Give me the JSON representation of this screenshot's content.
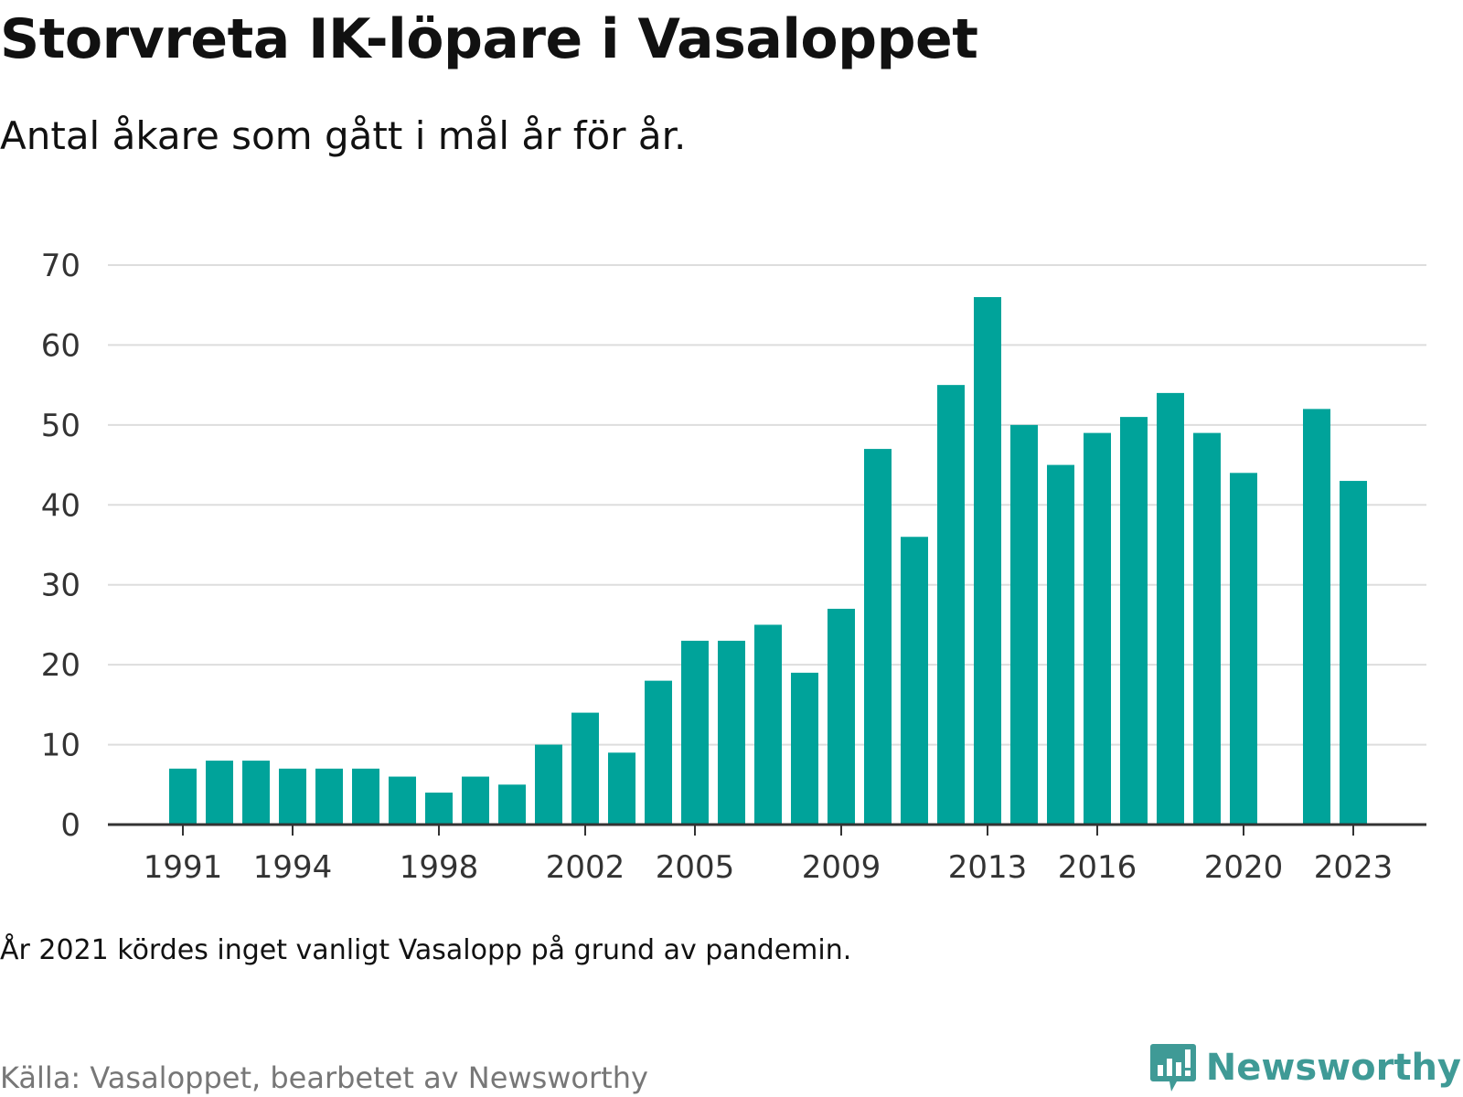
{
  "title": "Storvreta IK-löpare i Vasaloppet",
  "subtitle": "Antal åkare som gått i mål år för år.",
  "note": "År 2021 kördes inget vanligt Vasalopp på grund av pandemin.",
  "source": "Källa: Vasaloppet, bearbetet av Newsworthy",
  "brand": {
    "name": "Newsworthy",
    "icon": "newsworthy-logo-icon",
    "color": "#3f9a96"
  },
  "colors": {
    "bar": "#00a39a",
    "grid": "#dddddd",
    "axis": "#333333"
  },
  "chart_data": {
    "type": "bar",
    "categories": [
      1991,
      1992,
      1993,
      1994,
      1995,
      1996,
      1997,
      1998,
      1999,
      2000,
      2001,
      2002,
      2003,
      2004,
      2005,
      2006,
      2007,
      2008,
      2009,
      2010,
      2011,
      2012,
      2013,
      2014,
      2015,
      2016,
      2017,
      2018,
      2019,
      2020,
      2021,
      2022,
      2023
    ],
    "values": [
      7,
      8,
      8,
      7,
      7,
      7,
      6,
      4,
      6,
      5,
      10,
      14,
      9,
      18,
      23,
      23,
      25,
      19,
      27,
      47,
      36,
      55,
      66,
      50,
      45,
      49,
      51,
      54,
      49,
      44,
      null,
      52,
      43
    ],
    "x_tick_labels": [
      1991,
      1994,
      1998,
      2002,
      2005,
      2009,
      2013,
      2016,
      2020,
      2023
    ],
    "y_ticks": [
      0,
      10,
      20,
      30,
      40,
      50,
      60,
      70
    ],
    "ylim": [
      0,
      70
    ],
    "grid": true,
    "legend": "none",
    "xlabel": "",
    "ylabel": ""
  }
}
